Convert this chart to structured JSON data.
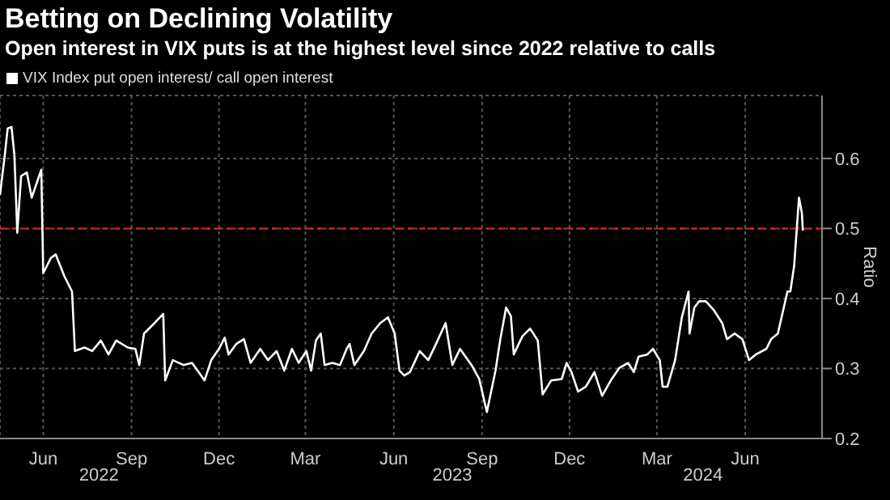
{
  "chart_data": {
    "type": "line",
    "title": "Betting on Declining Volatility",
    "subtitle": "Open interest in VIX puts is at the highest level since 2022 relative to calls",
    "ylabel": "Ratio",
    "legend": "top left",
    "grid": true,
    "marker": "none",
    "line_style": "solid",
    "x": [
      "2022-05-01",
      "2022-05-06",
      "2022-05-09",
      "2022-05-13",
      "2022-05-16",
      "2022-05-19",
      "2022-05-23",
      "2022-05-29",
      "2022-06-03",
      "2022-06-08",
      "2022-06-13",
      "2022-06-15",
      "2022-06-23",
      "2022-06-28",
      "2022-07-07",
      "2022-07-15",
      "2022-07-18",
      "2022-07-28",
      "2022-08-05",
      "2022-08-14",
      "2022-08-22",
      "2022-08-30",
      "2022-09-11",
      "2022-09-19",
      "2022-09-23",
      "2022-09-28",
      "2022-10-09",
      "2022-10-18",
      "2022-10-20",
      "2022-10-28",
      "2022-11-08",
      "2022-11-17",
      "2022-11-30",
      "2022-12-07",
      "2022-12-15",
      "2022-12-21",
      "2022-12-25",
      "2023-01-02",
      "2023-01-10",
      "2023-01-17",
      "2023-01-27",
      "2023-02-04",
      "2023-02-13",
      "2023-02-21",
      "2023-03-01",
      "2023-03-08",
      "2023-03-16",
      "2023-03-21",
      "2023-03-26",
      "2023-03-31",
      "2023-04-04",
      "2023-04-12",
      "2023-04-20",
      "2023-04-27",
      "2023-04-30",
      "2023-05-05",
      "2023-05-15",
      "2023-05-23",
      "2023-06-01",
      "2023-06-09",
      "2023-06-16",
      "2023-06-21",
      "2023-06-26",
      "2023-07-02",
      "2023-07-12",
      "2023-07-21",
      "2023-07-29",
      "2023-08-08",
      "2023-08-15",
      "2023-08-23",
      "2023-09-04",
      "2023-09-12",
      "2023-09-20",
      "2023-09-29",
      "2023-10-04",
      "2023-10-10",
      "2023-10-15",
      "2023-10-18",
      "2023-10-27",
      "2023-11-04",
      "2023-11-12",
      "2023-11-17",
      "2023-11-26",
      "2023-12-07",
      "2023-12-12",
      "2023-12-17",
      "2023-12-24",
      "2024-01-01",
      "2024-01-10",
      "2024-01-18",
      "2024-01-28",
      "2024-02-05",
      "2024-02-14",
      "2024-02-20",
      "2024-02-25",
      "2024-03-05",
      "2024-03-11",
      "2024-03-18",
      "2024-03-21",
      "2024-03-26",
      "2024-04-03",
      "2024-04-10",
      "2024-04-17",
      "2024-04-18",
      "2024-04-23",
      "2024-04-28",
      "2024-05-05",
      "2024-05-13",
      "2024-05-22",
      "2024-05-27",
      "2024-06-04",
      "2024-06-12",
      "2024-06-19",
      "2024-06-26",
      "2024-07-07",
      "2024-07-12",
      "2024-07-19",
      "2024-07-24",
      "2024-07-29",
      "2024-08-01",
      "2024-08-05",
      "2024-08-10",
      "2024-08-13",
      "2024-08-14"
    ],
    "series": [
      {
        "name": "VIX Index put open interest/ call open interest",
        "color": "#ffffff",
        "values": [
          0.548,
          0.605,
          0.643,
          0.645,
          0.605,
          0.494,
          0.575,
          0.58,
          0.544,
          0.564,
          0.584,
          0.436,
          0.458,
          0.463,
          0.432,
          0.41,
          0.325,
          0.33,
          0.325,
          0.34,
          0.32,
          0.34,
          0.33,
          0.328,
          0.305,
          0.35,
          0.365,
          0.378,
          0.283,
          0.312,
          0.305,
          0.308,
          0.283,
          0.312,
          0.328,
          0.344,
          0.32,
          0.335,
          0.342,
          0.308,
          0.328,
          0.312,
          0.325,
          0.297,
          0.328,
          0.308,
          0.325,
          0.297,
          0.34,
          0.35,
          0.305,
          0.308,
          0.305,
          0.328,
          0.335,
          0.305,
          0.325,
          0.35,
          0.365,
          0.373,
          0.35,
          0.297,
          0.29,
          0.295,
          0.325,
          0.312,
          0.335,
          0.365,
          0.305,
          0.328,
          0.305,
          0.285,
          0.238,
          0.297,
          0.342,
          0.387,
          0.375,
          0.32,
          0.346,
          0.357,
          0.34,
          0.263,
          0.283,
          0.285,
          0.308,
          0.295,
          0.267,
          0.274,
          0.295,
          0.261,
          0.285,
          0.301,
          0.308,
          0.295,
          0.317,
          0.32,
          0.328,
          0.312,
          0.274,
          0.274,
          0.312,
          0.373,
          0.41,
          0.35,
          0.387,
          0.396,
          0.396,
          0.384,
          0.365,
          0.342,
          0.35,
          0.342,
          0.312,
          0.32,
          0.328,
          0.342,
          0.35,
          0.38,
          0.41,
          0.41,
          0.447,
          0.544,
          0.522,
          0.497
        ]
      }
    ],
    "xlim": [
      "2022-05-01",
      "2024-09-03"
    ],
    "xticks": [
      {
        "value": "2022-06-15",
        "label": "Jun"
      },
      {
        "value": "2022-09-15",
        "label": "Sep"
      },
      {
        "value": "2022-12-15",
        "label": "Dec"
      },
      {
        "value": "2023-03-15",
        "label": "Mar"
      },
      {
        "value": "2023-06-15",
        "label": "Jun"
      },
      {
        "value": "2023-09-15",
        "label": "Sep"
      },
      {
        "value": "2023-12-15",
        "label": "Dec"
      },
      {
        "value": "2024-03-15",
        "label": "Mar"
      },
      {
        "value": "2024-06-15",
        "label": "Jun"
      }
    ],
    "x2lim": [
      "2022-05-01",
      "2024-09-03"
    ],
    "x2ticks": [
      {
        "value": "2022-08-12",
        "label": "2022"
      },
      {
        "value": "2023-08-15",
        "label": "2023"
      },
      {
        "value": "2024-05-02",
        "label": "2024"
      }
    ],
    "ylim": [
      0.2,
      0.69
    ],
    "yticks": [
      0.2,
      0.3,
      0.4,
      0.5,
      0.6
    ],
    "ref_lines": [
      {
        "axis": "y",
        "value": 0.5,
        "color": "#e0202a",
        "line_style": "dashed"
      }
    ]
  }
}
